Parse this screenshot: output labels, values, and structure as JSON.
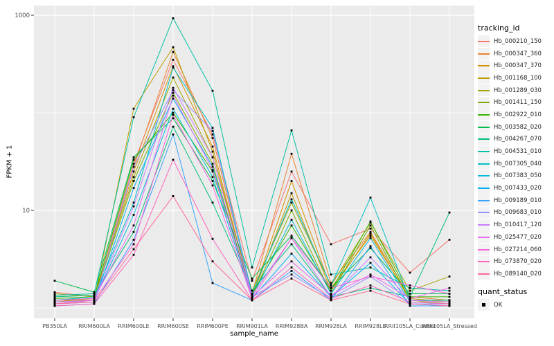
{
  "chart_data": {
    "type": "line",
    "title": "",
    "xlabel": "sample_name",
    "ylabel": "FPKM + 1",
    "y_scale": "log10",
    "ylim": [
      0.85,
      1300
    ],
    "grid": true,
    "legend_position": "right",
    "panel_bg": "#EBEBEB",
    "grid_color": "#FFFFFF",
    "point_color": "#000000",
    "tick_label_color": "#4D4D4D",
    "y_major_ticks": [
      {
        "label": "1000",
        "value": 1000
      },
      {
        "label": "10",
        "value": 10
      }
    ],
    "y_minor_values": [
      100,
      1
    ],
    "categories": [
      "PB350LA",
      "RRIM600LA",
      "RRIM600LE",
      "RRIM600SE",
      "RRIM600PE",
      "RRIM901LA",
      "RRIM928BA",
      "RRIM928LA",
      "RRIM928LE",
      "RRII105LA_Control",
      "RRII105LA_Stressed"
    ],
    "series": [
      {
        "name": "Hb_000210_150",
        "color": "#F8766D",
        "values": [
          1.45,
          1.3,
          30,
          350,
          60,
          1.9,
          25,
          4.5,
          6.5,
          2.3,
          5.0
        ]
      },
      {
        "name": "Hb_000347_360",
        "color": "#EA8331",
        "values": [
          1.2,
          1.2,
          28,
          420,
          55,
          1.4,
          38,
          1.8,
          6.0,
          1.3,
          1.2
        ]
      },
      {
        "name": "Hb_000347_370",
        "color": "#D89000",
        "values": [
          1.15,
          1.25,
          25,
          300,
          45,
          1.3,
          20,
          1.6,
          5.5,
          1.25,
          1.15
        ]
      },
      {
        "name": "Hb_001168_100",
        "color": "#C09B00",
        "values": [
          1.1,
          1.2,
          110,
          470,
          40,
          1.3,
          15,
          1.5,
          5.8,
          1.2,
          1.1
        ]
      },
      {
        "name": "Hb_001289_030",
        "color": "#A3A500",
        "values": [
          1.4,
          1.3,
          22,
          230,
          35,
          1.5,
          12,
          1.7,
          7.5,
          1.5,
          2.1
        ]
      },
      {
        "name": "Hb_001411_150",
        "color": "#7CAE00",
        "values": [
          1.2,
          1.25,
          20,
          160,
          30,
          1.3,
          10,
          1.4,
          7.0,
          1.2,
          1.2
        ]
      },
      {
        "name": "Hb_002922_010",
        "color": "#39B600",
        "values": [
          1.25,
          1.3,
          33,
          100,
          25,
          1.4,
          7.0,
          1.5,
          7.7,
          1.3,
          1.3
        ]
      },
      {
        "name": "Hb_003582_020",
        "color": "#00BB4E",
        "values": [
          1.9,
          1.45,
          35,
          88,
          20,
          2.0,
          5.5,
          1.6,
          4.1,
          1.4,
          1.4
        ]
      },
      {
        "name": "Hb_004267_070",
        "color": "#00BF7D",
        "values": [
          1.3,
          1.35,
          6.0,
          72,
          12,
          1.5,
          4.5,
          1.3,
          1.6,
          1.3,
          9.5
        ]
      },
      {
        "name": "Hb_004531_010",
        "color": "#00C1A3",
        "values": [
          1.35,
          1.4,
          90,
          930,
          168,
          2.6,
          66,
          2.2,
          2.6,
          1.6,
          1.5
        ]
      },
      {
        "name": "Hb_007305_040",
        "color": "#00BFC4",
        "values": [
          1.2,
          1.3,
          12,
          290,
          70,
          1.4,
          13,
          1.7,
          13.5,
          1.2,
          1.2
        ]
      },
      {
        "name": "Hb_007383_050",
        "color": "#00BAE0",
        "values": [
          1.15,
          1.2,
          9.0,
          110,
          22,
          1.3,
          8.0,
          1.4,
          5.2,
          1.15,
          1.1
        ]
      },
      {
        "name": "Hb_007433_020",
        "color": "#00B0F6",
        "values": [
          1.1,
          1.15,
          17,
          140,
          28,
          1.25,
          3.6,
          1.3,
          2.9,
          1.1,
          1.05
        ]
      },
      {
        "name": "Hb_009189_010",
        "color": "#35A2FF",
        "values": [
          1.05,
          1.1,
          5.0,
          60,
          1.8,
          1.2,
          2.4,
          1.2,
          4.3,
          1.05,
          1.05
        ]
      },
      {
        "name": "Hb_009683_010",
        "color": "#9590FF",
        "values": [
          1.1,
          1.15,
          28,
          170,
          65,
          1.3,
          2.2,
          1.25,
          2.1,
          1.1,
          1.1
        ]
      },
      {
        "name": "Hb_010417_120",
        "color": "#C77CFF",
        "values": [
          1.15,
          1.2,
          11,
          180,
          35,
          1.35,
          5.2,
          1.3,
          3.3,
          1.2,
          1.15
        ]
      },
      {
        "name": "Hb_025477_020",
        "color": "#E76BF3",
        "values": [
          1.2,
          1.25,
          7.0,
          150,
          26,
          1.3,
          3.0,
          1.35,
          2.2,
          1.25,
          1.6
        ]
      },
      {
        "name": "Hb_027214_060",
        "color": "#FA62DB",
        "values": [
          1.1,
          1.2,
          4.5,
          95,
          18,
          1.25,
          5.2,
          1.6,
          2.1,
          1.7,
          1.4
        ]
      },
      {
        "name": "Hb_073870_020",
        "color": "#FF62BC",
        "values": [
          1.05,
          1.1,
          3.5,
          33,
          5.1,
          1.2,
          2.6,
          1.25,
          1.7,
          1.15,
          1.1
        ]
      },
      {
        "name": "Hb_089140_020",
        "color": "#FF6A98",
        "values": [
          1.1,
          1.15,
          4.0,
          14,
          3.0,
          1.2,
          2.0,
          1.2,
          1.5,
          1.1,
          1.05
        ]
      }
    ]
  },
  "legend": {
    "tracking_title": "tracking_id",
    "quant_title": "quant_status",
    "quant_items": [
      {
        "label": "OK"
      }
    ]
  }
}
